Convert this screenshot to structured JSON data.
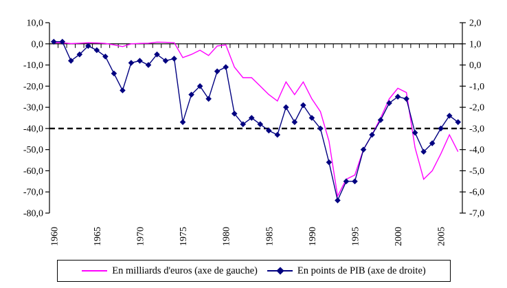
{
  "chart_data": {
    "type": "line",
    "title": "",
    "x_start_year": 1960,
    "x": [
      1960,
      1961,
      1962,
      1963,
      1964,
      1965,
      1966,
      1967,
      1968,
      1969,
      1970,
      1971,
      1972,
      1973,
      1974,
      1975,
      1976,
      1977,
      1978,
      1979,
      1980,
      1981,
      1982,
      1983,
      1984,
      1985,
      1986,
      1987,
      1988,
      1989,
      1990,
      1991,
      1992,
      1993,
      1994,
      1995,
      1996,
      1997,
      1998,
      1999,
      2000,
      2001,
      2002,
      2003,
      2004,
      2005,
      2006,
      2007
    ],
    "x_tick_years": [
      1960,
      1965,
      1970,
      1975,
      1980,
      1985,
      1990,
      1995,
      2000,
      2005
    ],
    "x_tick_labels": [
      "1960",
      "1965",
      "1970",
      "1975",
      "1980",
      "1985",
      "1990",
      "1995",
      "2000",
      "2005"
    ],
    "series": [
      {
        "name": "En milliards d'euros (axe de gauche)",
        "axis": "left",
        "color": "#FF00FF",
        "marker": "none",
        "values": [
          0.5,
          0.5,
          0.1,
          0.3,
          0.5,
          0.4,
          0.2,
          -0.5,
          -1.3,
          0.0,
          0.2,
          0.3,
          0.8,
          0.7,
          0.5,
          -6.5,
          -5.0,
          -3.0,
          -5.5,
          -1.0,
          -0.5,
          -11,
          -16,
          -16,
          -20,
          -24,
          -27,
          -18,
          -24,
          -18,
          -26,
          -32,
          -46,
          -72,
          -64,
          -62,
          -50,
          -43,
          -35,
          -26,
          -21,
          -23,
          -49,
          -64,
          -60,
          -52,
          -43,
          -51
        ]
      },
      {
        "name": "En points de PIB (axe de droite)",
        "axis": "right",
        "color": "#000080",
        "marker": "diamond",
        "values": [
          1.1,
          1.1,
          0.2,
          0.5,
          0.9,
          0.7,
          0.4,
          -0.4,
          -1.2,
          0.1,
          0.2,
          0.0,
          0.5,
          0.2,
          0.3,
          -2.7,
          -1.4,
          -1.0,
          -1.6,
          -0.3,
          -0.1,
          -2.3,
          -2.8,
          -2.5,
          -2.8,
          -3.1,
          -3.3,
          -2.0,
          -2.7,
          -1.9,
          -2.5,
          -3.0,
          -4.6,
          -6.4,
          -5.5,
          -5.5,
          -4.0,
          -3.3,
          -2.6,
          -1.8,
          -1.5,
          -1.6,
          -3.2,
          -4.1,
          -3.7,
          -3.0,
          -2.4,
          -2.7
        ]
      }
    ],
    "left_axis": {
      "max": 10,
      "min": -80,
      "step": 10,
      "tick_labels": [
        "10,0",
        "0,0",
        "-10,0",
        "-20,0",
        "-30,0",
        "-40,0",
        "-50,0",
        "-60,0",
        "-70,0",
        "-80,0"
      ]
    },
    "right_axis": {
      "max": 2,
      "min": -7,
      "step": 1,
      "tick_labels": [
        "2,0",
        "1,0",
        "0,0",
        "-1,0",
        "-2,0",
        "-3,0",
        "-4,0",
        "-5,0",
        "-6,0",
        "-7,0"
      ]
    },
    "reference_line": {
      "left_value": -40,
      "right_value": -3.0,
      "style": "dashed",
      "color": "#000000"
    },
    "grid": "off",
    "legend_position": "bottom"
  },
  "legend": {
    "items": [
      {
        "label": "En milliards d'euros (axe de gauche)"
      },
      {
        "label": "En points de PIB (axe de droite)"
      }
    ]
  },
  "colors": {
    "euros_line": "#FF00FF",
    "pib_line": "#000080",
    "axis": "#000000",
    "background": "#FFFFFF"
  }
}
